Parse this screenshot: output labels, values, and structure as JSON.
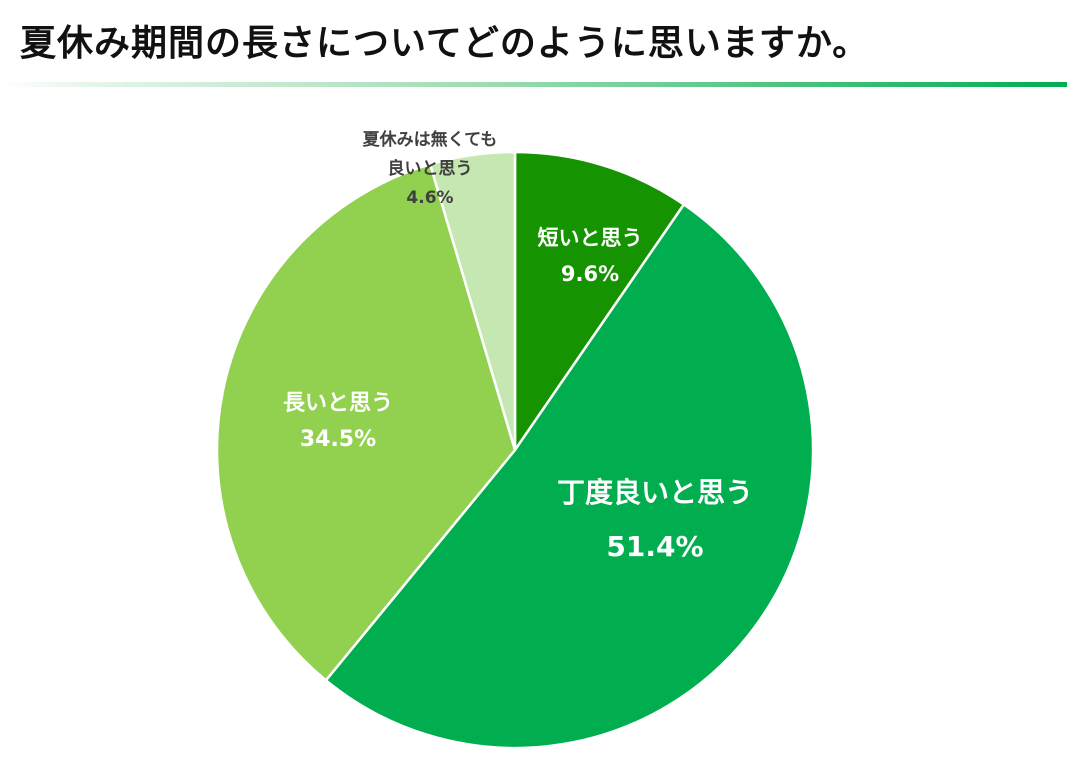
{
  "title": "夏休み期間の長さについてどのように思いますか。",
  "chart_data": {
    "type": "pie",
    "title": "夏休み期間の長さについてどのように思いますか。",
    "start_angle": "12 o'clock",
    "direction": "clockwise",
    "legend": "none (labels on slices)",
    "slices": [
      {
        "label": "短いと思う",
        "value": 9.6,
        "value_label": "9.6%",
        "color": "#169300",
        "label_color": "#ffffff"
      },
      {
        "label": "丁度良いと思う",
        "value": 51.4,
        "value_label": "51.4%",
        "color": "#00ad4f",
        "label_color": "#ffffff"
      },
      {
        "label": "長いと思う",
        "value": 34.5,
        "value_label": "34.5%",
        "color": "#92d050",
        "label_color": "#ffffff"
      },
      {
        "label": "夏休みは無くても良いと思う",
        "label_lines": [
          "夏休みは無くても",
          "良いと思う"
        ],
        "value": 4.6,
        "value_label": "4.6%",
        "color": "#c5e8b2",
        "label_color": "#404040"
      }
    ]
  }
}
